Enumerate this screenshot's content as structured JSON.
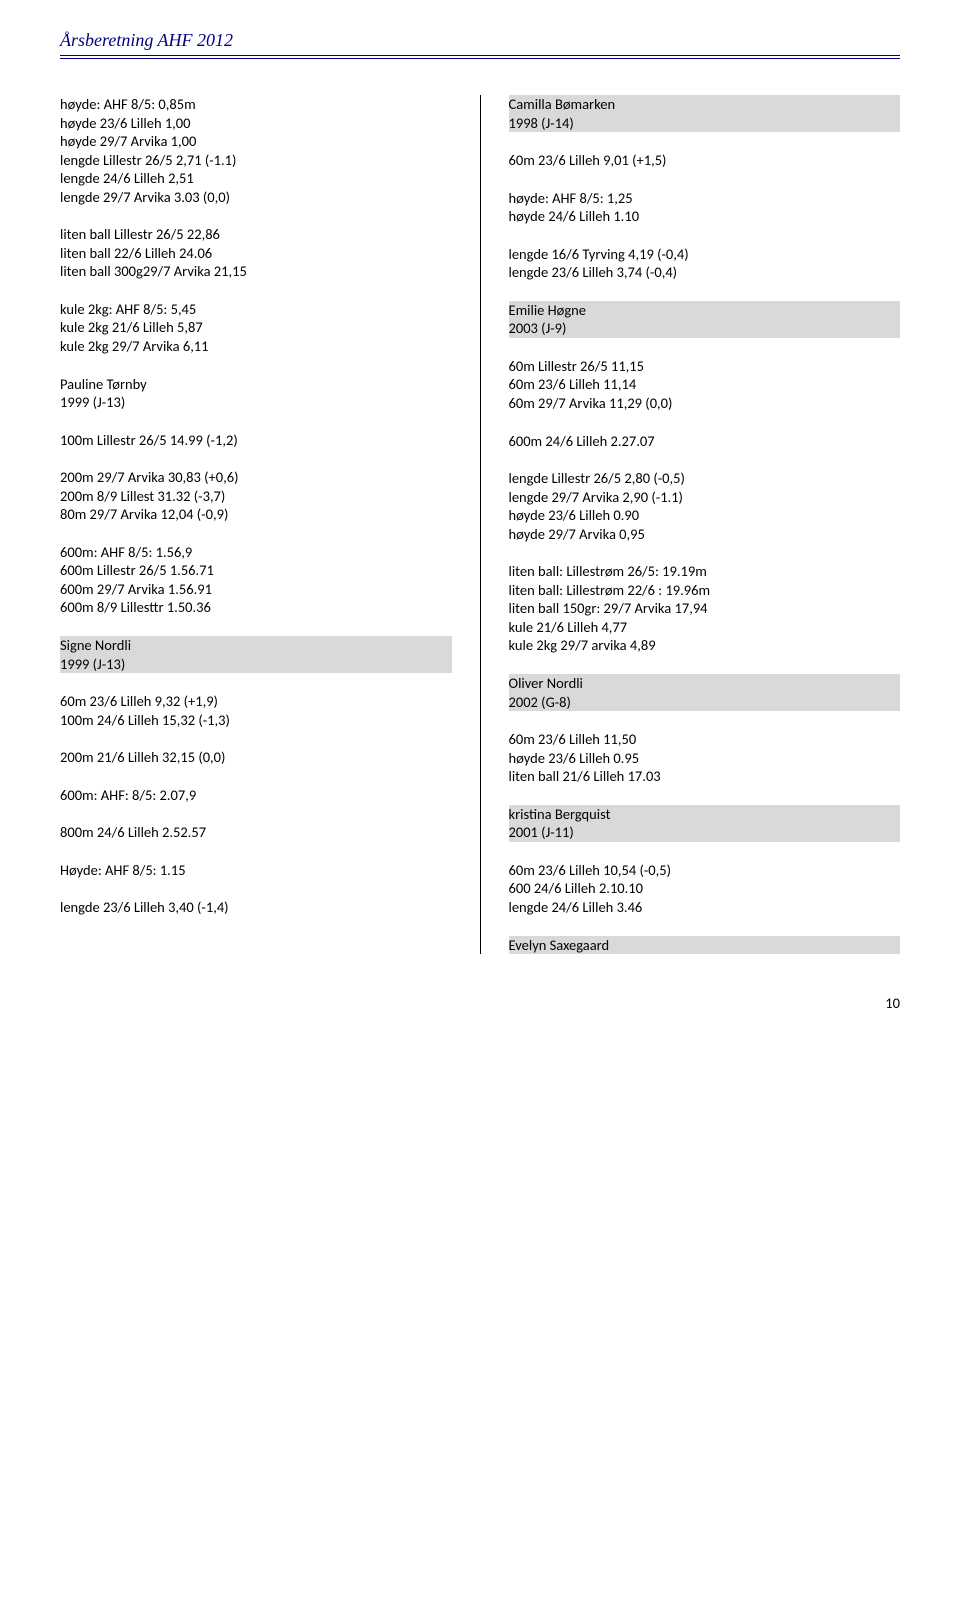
{
  "header": {
    "title": "Årsberetning AHF 2012"
  },
  "left": {
    "b1": [
      "høyde: AHF 8/5: 0,85m",
      "høyde 23/6 Lilleh 1,00",
      "høyde 29/7 Arvika 1,00",
      "lengde Lillestr 26/5 2,71 (-1.1)",
      "lengde 24/6 Lilleh 2,51",
      "lengde 29/7 Arvika 3.03 (0,0)"
    ],
    "b2": [
      "liten ball Lillestr 26/5 22,86",
      "liten ball 22/6 Lilleh 24.06",
      "liten ball  300g29/7 Arvika 21,15"
    ],
    "b3": [
      "kule 2kg: AHF 8/5: 5,45",
      "kule 2kg  21/6 Lilleh 5,87",
      "kule 2kg 29/7 Arvika 6,11"
    ],
    "a1": {
      "name": "Pauline Tørnby",
      "sub": "1999 (J-13)"
    },
    "b4": [
      "100m Lillestr 26/5 14.99 (-1,2)"
    ],
    "b5": [
      "200m 29/7 Arvika 30,83 (+0,6)",
      "200m 8/9 Lillest 31.32 (-3,7)",
      "80m 29/7 Arvika 12,04 (-0,9)"
    ],
    "b6": [
      "600m: AHF 8/5: 1.56,9",
      "600m Lillestr 26/5 1.56.71",
      "600m 29/7 Arvika 1.56.91",
      "600m 8/9 Lillesttr 1.50.36"
    ],
    "a2": {
      "name": "Signe Nordli",
      "sub": "1999 (J-13)"
    },
    "b7": [
      "60m 23/6 Lilleh 9,32 (+1,9)",
      "100m 24/6 Lilleh 15,32 (-1,3)"
    ],
    "b8": [
      "200m 21/6 Lilleh 32,15 (0,0)"
    ],
    "b9": [
      "600m: AHF: 8/5: 2.07,9"
    ],
    "b10": [
      "800m 24/6 Lilleh 2.52.57"
    ],
    "b11": [
      "Høyde: AHF 8/5: 1.15"
    ],
    "b12": [
      "lengde 23/6 Lilleh 3,40 (-1,4)"
    ]
  },
  "right": {
    "a1": {
      "name": "Camilla Bømarken",
      "sub": "1998 (J-14)"
    },
    "b1": [
      "60m 23/6 Lilleh  9,01 (+1,5)"
    ],
    "b2": [
      "høyde: AHF 8/5: 1,25",
      "høyde 24/6 Lilleh 1.10"
    ],
    "b3": [
      "lengde 16/6 Tyrving 4,19 (-0,4)",
      "lengde 23/6 Lilleh 3,74 (-0,4)"
    ],
    "a2": {
      "name": "Emilie Høgne",
      "sub": "2003 (J-9)"
    },
    "b4": [
      "60m Lillestr 26/5 11,15",
      "60m 23/6 Lilleh 11,14",
      "60m 29/7 Arvika 11,29 (0,0)"
    ],
    "b5": [
      "600m 24/6 Lilleh 2.27.07"
    ],
    "b6": [
      "lengde Lillestr 26/5 2,80 (-0,5)",
      "lengde 29/7 Arvika 2,90 (-1.1)",
      "høyde 23/6 Lilleh 0.90",
      "høyde 29/7 Arvika 0,95"
    ],
    "b7": [
      "liten ball: Lillestrøm 26/5: 19.19m",
      "liten ball: Lillestrøm 22/6 : 19.96m",
      "liten ball  150gr:  29/7 Arvika 17,94",
      "kule 21/6 Lilleh 4,77",
      "kule 2kg 29/7 arvika 4,89"
    ],
    "a3": {
      "name": "Oliver Nordli",
      "sub": "2002 (G-8)"
    },
    "b8": [
      "60m 23/6 Lilleh 11,50",
      "høyde 23/6 Lilleh 0.95",
      "liten ball 21/6 Lilleh 17.03"
    ],
    "a4": {
      "name": "kristina Bergquist",
      "sub": "2001 (J-11)"
    },
    "b9": [
      "60m 23/6 Lilleh 10,54 (-0,5)",
      "600 24/6 Lilleh 2.10.10",
      "lengde 24/6 Lilleh 3.46"
    ],
    "a5": {
      "name": "Evelyn Saxegaard"
    }
  },
  "pageNum": "10"
}
